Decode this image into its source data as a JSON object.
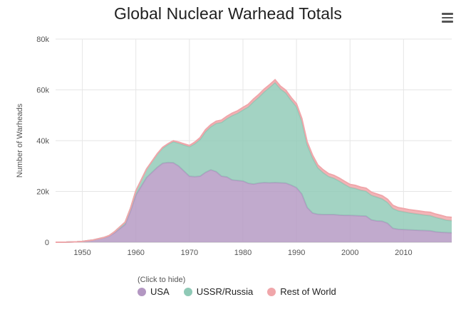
{
  "chart_data": {
    "type": "area",
    "stacked": true,
    "title": "Global Nuclear Warhead Totals",
    "xlabel": "",
    "ylabel": "Number of Warheads",
    "xlim": [
      1945,
      2019
    ],
    "ylim": [
      0,
      80000
    ],
    "x_ticks": [
      1950,
      1960,
      1970,
      1980,
      1990,
      2000,
      2010
    ],
    "y_ticks": [
      0,
      20000,
      40000,
      60000,
      80000
    ],
    "y_tick_labels": [
      "0",
      "20k",
      "40k",
      "60k",
      "80k"
    ],
    "legend_position": "bottom-center",
    "legend_hint": "(Click to hide)",
    "x": [
      1945,
      1947,
      1949,
      1950,
      1952,
      1954,
      1955,
      1956,
      1958,
      1959,
      1960,
      1962,
      1964,
      1965,
      1966,
      1967,
      1968,
      1970,
      1971,
      1972,
      1973,
      1974,
      1975,
      1976,
      1977,
      1978,
      1979,
      1980,
      1981,
      1982,
      1983,
      1984,
      1985,
      1986,
      1987,
      1988,
      1989,
      1990,
      1991,
      1992,
      1993,
      1994,
      1995,
      1996,
      1997,
      1998,
      1999,
      2000,
      2001,
      2002,
      2003,
      2004,
      2005,
      2006,
      2007,
      2008,
      2009,
      2010,
      2011,
      2012,
      2013,
      2014,
      2015,
      2016,
      2017,
      2018,
      2019
    ],
    "series": [
      {
        "name": "USA",
        "color": "#b397c2",
        "values": [
          0,
          30,
          170,
          300,
          840,
          1700,
          2400,
          3700,
          7000,
          12300,
          18600,
          25500,
          29500,
          31100,
          31400,
          31300,
          30000,
          26000,
          25800,
          26000,
          27500,
          28500,
          27800,
          26000,
          25700,
          24500,
          24300,
          24100,
          23200,
          22900,
          23300,
          23500,
          23400,
          23500,
          23400,
          23300,
          22500,
          21500,
          19000,
          13700,
          11500,
          11000,
          10900,
          10900,
          10900,
          10700,
          10600,
          10600,
          10500,
          10400,
          10300,
          8800,
          8400,
          8300,
          7500,
          5500,
          5100,
          5000,
          4900,
          4800,
          4700,
          4600,
          4500,
          4100,
          3900,
          3800,
          3700
        ]
      },
      {
        "name": "USSR/Russia",
        "color": "#8fc9b6",
        "values": [
          0,
          0,
          1,
          5,
          50,
          150,
          200,
          400,
          900,
          1060,
          1600,
          3300,
          5200,
          6000,
          7100,
          8300,
          9000,
          11600,
          13000,
          14500,
          16000,
          17000,
          19000,
          21200,
          23000,
          25400,
          26500,
          28000,
          30100,
          32500,
          33900,
          35800,
          37600,
          39400,
          37000,
          35500,
          33400,
          31900,
          28600,
          24700,
          21700,
          18300,
          16500,
          15000,
          14300,
          13400,
          12200,
          11000,
          10700,
          10100,
          9800,
          9700,
          9400,
          8800,
          8200,
          7800,
          7300,
          7000,
          6700,
          6500,
          6300,
          6100,
          6000,
          5700,
          5400,
          4900,
          4800
        ]
      },
      {
        "name": "Rest of World",
        "color": "#f0a6aa",
        "values": [
          0,
          0,
          0,
          0,
          0,
          0,
          0,
          0,
          10,
          20,
          30,
          60,
          150,
          250,
          300,
          350,
          400,
          500,
          600,
          700,
          780,
          800,
          850,
          900,
          900,
          940,
          950,
          980,
          1000,
          1050,
          1050,
          1050,
          1050,
          1060,
          1070,
          1080,
          1100,
          1120,
          1120,
          1100,
          1100,
          1100,
          1100,
          1120,
          1120,
          1130,
          1150,
          1160,
          1170,
          1180,
          1190,
          1200,
          1200,
          1210,
          1220,
          1230,
          1230,
          1240,
          1250,
          1260,
          1270,
          1270,
          1280,
          1280,
          1280,
          1280,
          1280
        ]
      }
    ]
  },
  "menu": {
    "icon": "hamburger-menu-icon"
  }
}
